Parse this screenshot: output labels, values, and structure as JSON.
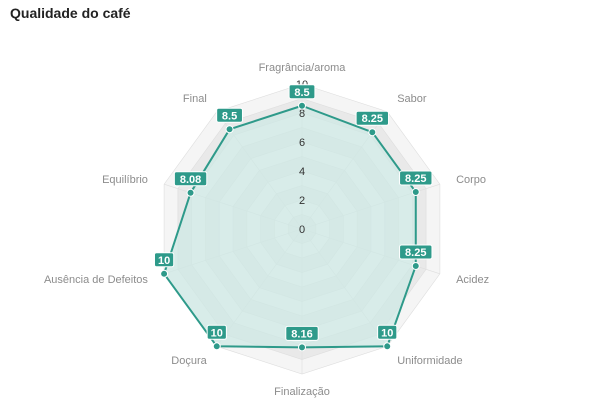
{
  "title": "Qualidade do café",
  "colors": {
    "accent": "#2e9a8a",
    "fill": "#cde8e4",
    "band_light": "#f5f5f5",
    "band_dark": "#e9e9e9"
  },
  "chart_data": {
    "type": "radar",
    "title": "Qualidade do café",
    "categories": [
      "Fragrância/aroma",
      "Sabor",
      "Corpo",
      "Acidez",
      "Uniformidade",
      "Finalização",
      "Doçura",
      "Ausência de Defeitos",
      "Equilíbrio",
      "Final"
    ],
    "values": [
      8.5,
      8.25,
      8.25,
      8.25,
      10,
      8.16,
      10,
      10,
      8.08,
      8.5
    ],
    "value_labels": [
      "8.5",
      "8.25",
      "8.25",
      "8.25",
      "10",
      "8.16",
      "10",
      "10",
      "8.08",
      "8.5"
    ],
    "rlim": [
      0,
      10
    ],
    "ticks": [
      "0",
      "2",
      "4",
      "6",
      "8",
      "10"
    ],
    "grid": true
  }
}
